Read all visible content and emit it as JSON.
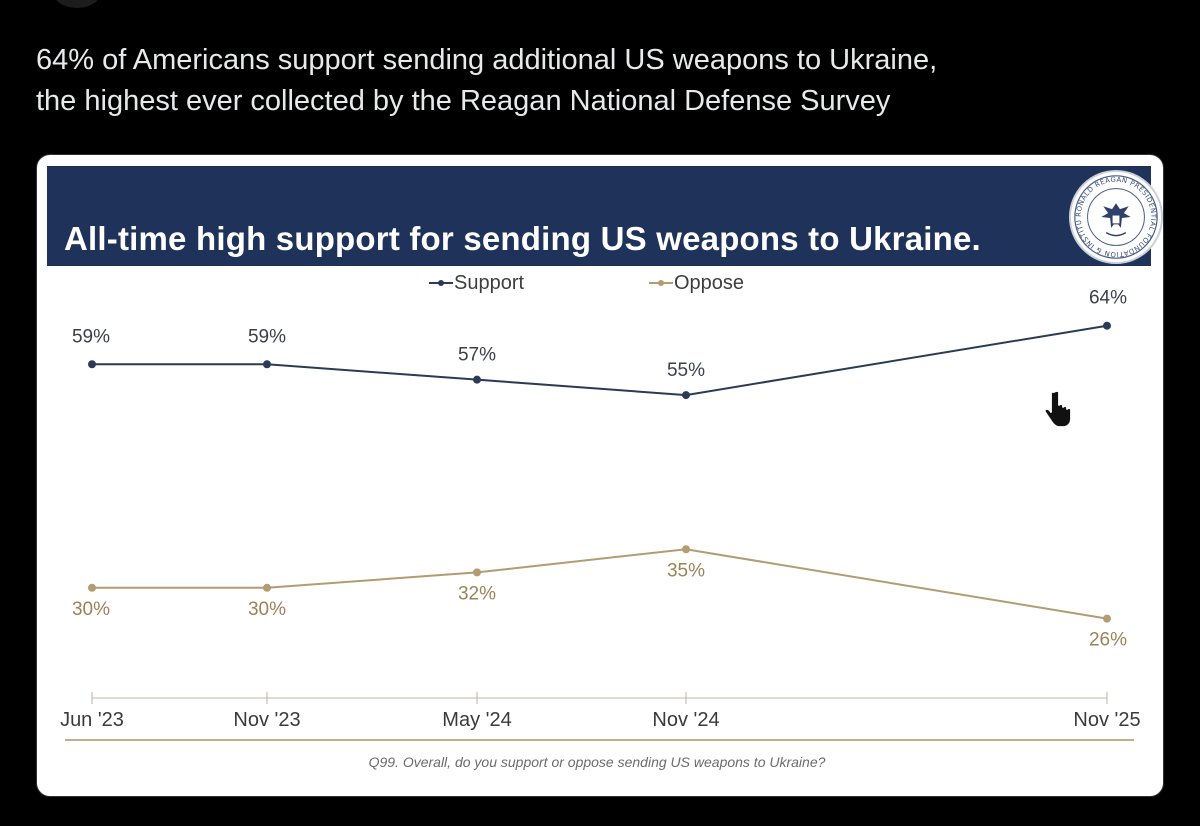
{
  "post": {
    "line1": "64% of Americans support sending additional US weapons to Ukraine,",
    "line2": "the highest ever collected by the Reagan National Defense Survey"
  },
  "card": {
    "banner_title": "All-time high support for sending US weapons to Ukraine.",
    "seal_text": "RONALD REAGAN PRESIDENTIAL FOUNDATION & INSTITUTE",
    "seal_icon": "eagle-seal-icon",
    "cursor_icon": "hand-pointer-icon",
    "footnote": "Q99. Overall, do you support or oppose sending US weapons to Ukraine?"
  },
  "colors": {
    "background": "#000000",
    "banner": "#1f3259",
    "support": "#2b3a55",
    "oppose": "#b39b72",
    "axis": "#d8d2c4",
    "footnote_rule": "#c2ae86"
  },
  "chart_data": {
    "type": "line",
    "title": "All-time high support for sending US weapons to Ukraine.",
    "categories": [
      "Jun '23",
      "Nov '23",
      "May '24",
      "Nov '24",
      "Nov '25"
    ],
    "series": [
      {
        "name": "Support",
        "values": [
          59,
          59,
          57,
          55,
          64
        ],
        "labels": [
          "59%",
          "59%",
          "57%",
          "55%",
          "64%"
        ],
        "color": "#2b3a55"
      },
      {
        "name": "Oppose",
        "values": [
          30,
          30,
          32,
          35,
          26
        ],
        "labels": [
          "30%",
          "30%",
          "32%",
          "35%",
          "26%"
        ],
        "color": "#b39b72"
      }
    ],
    "ylim": [
      17,
      65
    ],
    "grid": false,
    "legend": "top-center",
    "xlabel": "",
    "ylabel": ""
  }
}
